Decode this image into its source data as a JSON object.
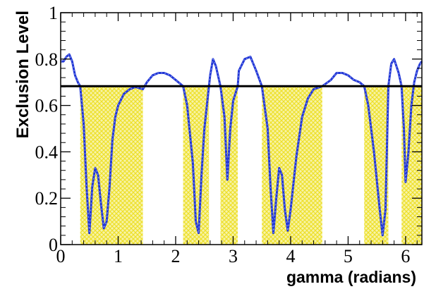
{
  "chart_data": {
    "type": "line",
    "title": "",
    "xlabel": "gamma (radians)",
    "ylabel": "Exclusion Level",
    "xlim": [
      0,
      6.2832
    ],
    "ylim": [
      0,
      1
    ],
    "xticks": [
      0,
      1,
      2,
      3,
      4,
      5,
      6
    ],
    "xtick_labels": [
      "0",
      "1",
      "2",
      "3",
      "4",
      "5",
      "6"
    ],
    "yticks": [
      0,
      0.2,
      0.4,
      0.6,
      0.8,
      1
    ],
    "ytick_labels": [
      "0",
      "0.2",
      "0.4",
      "0.6",
      "0.8",
      "1"
    ],
    "grid": false,
    "legend": "none",
    "threshold": 0.683,
    "colors": {
      "curve": "#1f35d6",
      "threshold": "#000000",
      "shade": "#f2ee3a"
    },
    "excluded_regions": [
      [
        0.34,
        1.43
      ],
      [
        2.13,
        2.58
      ],
      [
        2.78,
        3.08
      ],
      [
        3.5,
        4.55
      ],
      [
        5.28,
        5.7
      ],
      [
        5.93,
        6.2832
      ]
    ],
    "series": [
      {
        "x": [
          0,
          0.05,
          0.1,
          0.15,
          0.2,
          0.25,
          0.3,
          0.34,
          0.4,
          0.45,
          0.5,
          0.55,
          0.6,
          0.65,
          0.7,
          0.75,
          0.8,
          0.85,
          0.9,
          0.95,
          1.0,
          1.1,
          1.2,
          1.3,
          1.43,
          1.5,
          1.6,
          1.7,
          1.8,
          1.9,
          2.0,
          2.13,
          2.2,
          2.3,
          2.35,
          2.4,
          2.45,
          2.5,
          2.58,
          2.6,
          2.65,
          2.7,
          2.78,
          2.85,
          2.9,
          2.95,
          3.0,
          3.08,
          3.1,
          3.2,
          3.3,
          3.4,
          3.5,
          3.6,
          3.65,
          3.7,
          3.75,
          3.8,
          3.85,
          3.9,
          3.95,
          4.0,
          4.1,
          4.2,
          4.3,
          4.4,
          4.55,
          4.7,
          4.8,
          4.9,
          5.0,
          5.1,
          5.2,
          5.28,
          5.35,
          5.45,
          5.55,
          5.6,
          5.65,
          5.7,
          5.75,
          5.8,
          5.88,
          5.93,
          5.97,
          6.0,
          6.05,
          6.1,
          6.15,
          6.2,
          6.25,
          6.2832
        ],
        "y": [
          0.79,
          0.79,
          0.81,
          0.82,
          0.79,
          0.73,
          0.7,
          0.683,
          0.52,
          0.25,
          0.05,
          0.25,
          0.33,
          0.3,
          0.18,
          0.07,
          0.1,
          0.25,
          0.45,
          0.55,
          0.6,
          0.65,
          0.67,
          0.68,
          0.67,
          0.7,
          0.73,
          0.74,
          0.74,
          0.73,
          0.71,
          0.683,
          0.6,
          0.35,
          0.1,
          0.05,
          0.3,
          0.5,
          0.683,
          0.73,
          0.8,
          0.77,
          0.683,
          0.55,
          0.28,
          0.5,
          0.62,
          0.683,
          0.75,
          0.8,
          0.81,
          0.75,
          0.683,
          0.5,
          0.25,
          0.05,
          0.2,
          0.33,
          0.3,
          0.15,
          0.06,
          0.15,
          0.38,
          0.55,
          0.63,
          0.67,
          0.683,
          0.71,
          0.74,
          0.74,
          0.73,
          0.71,
          0.7,
          0.683,
          0.6,
          0.4,
          0.15,
          0.04,
          0.15,
          0.683,
          0.78,
          0.8,
          0.74,
          0.683,
          0.5,
          0.27,
          0.4,
          0.6,
          0.7,
          0.75,
          0.78,
          0.79
        ]
      }
    ]
  }
}
